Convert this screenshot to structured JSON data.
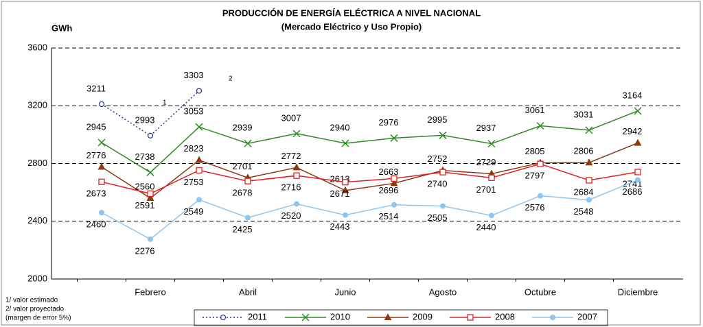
{
  "chart_data": {
    "type": "line",
    "title": "PRODUCCIÓN DE ENERGÍA ELÉCTRICA A NIVEL NACIONAL",
    "subtitle": "(Mercado Eléctrico y Uso Propio)",
    "y_label": "GWh",
    "categories": [
      null,
      "Febrero",
      null,
      "Abril",
      null,
      "Junio",
      null,
      "Agosto",
      null,
      "Octubre",
      null,
      "Diciembre"
    ],
    "ylim": [
      2000,
      3600
    ],
    "yticks": [
      2000,
      2400,
      2800,
      3200,
      3600
    ],
    "grid": true,
    "series": [
      {
        "name": "2011",
        "color": "#1f2f8f",
        "marker": "circle-open",
        "dash": "dot",
        "values": [
          3211,
          2993,
          3303,
          null,
          null,
          null,
          null,
          null,
          null,
          null,
          null,
          null
        ]
      },
      {
        "name": "2010",
        "color": "#2e8b22",
        "marker": "x",
        "values": [
          2945,
          2738,
          3053,
          2939,
          3007,
          2940,
          2976,
          2995,
          2937,
          3061,
          3031,
          3164
        ]
      },
      {
        "name": "2009",
        "color": "#8b3a10",
        "marker": "triangle",
        "values": [
          2776,
          2560,
          2823,
          2701,
          2772,
          2613,
          2663,
          2752,
          2729,
          2805,
          2806,
          2942
        ]
      },
      {
        "name": "2008",
        "color": "#e02020",
        "marker": "square-open",
        "values": [
          2673,
          2591,
          2753,
          2678,
          2716,
          2671,
          2696,
          2740,
          2701,
          2797,
          2684,
          2741
        ]
      },
      {
        "name": "2007",
        "color": "#8ec4f0",
        "marker": "circle",
        "values": [
          2460,
          2276,
          2549,
          2425,
          2520,
          2443,
          2514,
          2505,
          2440,
          2576,
          2548,
          2686
        ]
      }
    ],
    "annotations": [
      "1",
      "2"
    ],
    "notes": [
      "1/ valor estimado",
      "2/ valor proyectado",
      "(margen de error 5%)"
    ]
  }
}
